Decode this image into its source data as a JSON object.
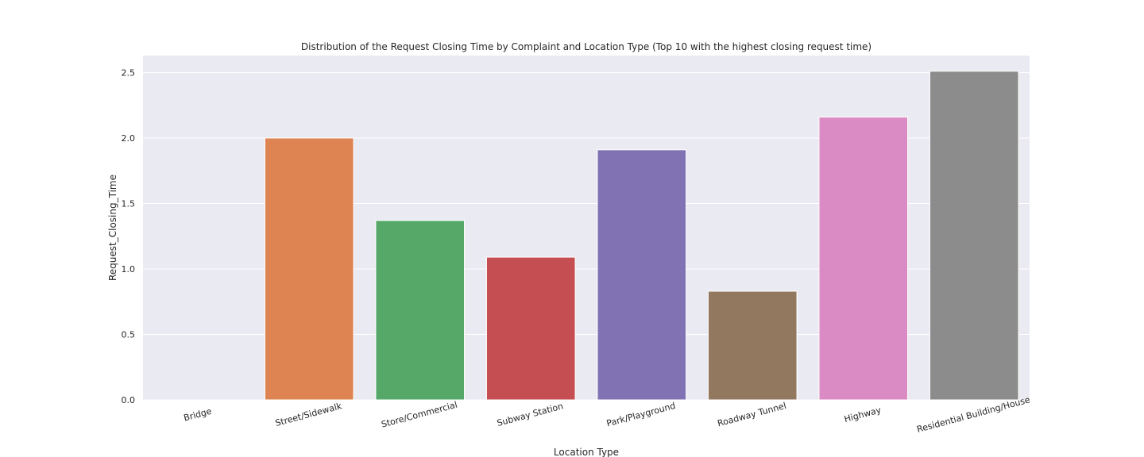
{
  "chart_data": {
    "type": "bar",
    "title": "Distribution of the Request Closing Time by Complaint and Location Type (Top 10 with the highest closing request time)",
    "xlabel": "Location Type",
    "ylabel": "Request_Closing_Time",
    "categories": [
      "Bridge",
      "Street/Sidewalk",
      "Store/Commercial",
      "Subway Station",
      "Park/Playground",
      "Roadway Tunnel",
      "Highway",
      "Residential Building/House"
    ],
    "values": [
      0.0,
      2.0,
      1.37,
      1.09,
      1.91,
      0.83,
      2.16,
      2.51
    ],
    "colors": [
      "#4c72b0",
      "#dd8452",
      "#55a868",
      "#c44e52",
      "#8172b3",
      "#937860",
      "#da8bc3",
      "#8c8c8c"
    ],
    "ylim": [
      0,
      2.63
    ],
    "yticks": [
      "0.0",
      "0.5",
      "1.0",
      "1.5",
      "2.0",
      "2.5"
    ],
    "ytick_values": [
      0,
      0.5,
      1.0,
      1.5,
      2.0,
      2.5
    ],
    "grid": true,
    "background": "#eaeaf2",
    "grid_color": "#ffffff"
  }
}
